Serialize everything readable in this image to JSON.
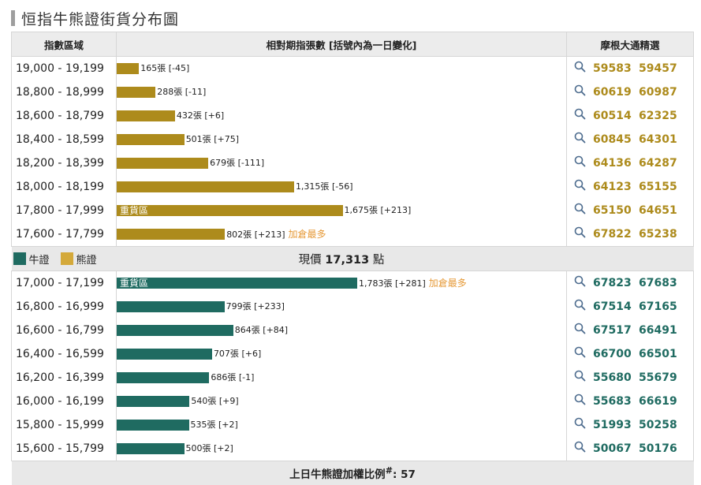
{
  "title": "恒指牛熊證街貨分布圖",
  "headers": {
    "range": "指數區域",
    "contracts": "相對期指張數 [括號內為一日變化]",
    "picks": "摩根大通精選"
  },
  "legend": {
    "bull": "牛證",
    "bear": "熊證"
  },
  "current_price": {
    "label": "現價",
    "value": "17,313",
    "unit": "點"
  },
  "footer": {
    "label": "上日牛熊證加權比例",
    "mark": "#",
    "sep": ":",
    "value": "57"
  },
  "heavy_label": "重貨區",
  "colors": {
    "bull": "#1f6b61",
    "bear": "#ad8b1c",
    "note": "#e69a38"
  },
  "icon": "search-icon",
  "chart_data": {
    "type": "bar",
    "orientation": "horizontal",
    "xmax": 1783,
    "bear_rows": [
      {
        "range": "19,000 - 19,199",
        "value": 165,
        "value_label": "165張",
        "change": "[-45]",
        "note": "",
        "heavy": false,
        "codes": [
          "59583",
          "59457"
        ]
      },
      {
        "range": "18,800 - 18,999",
        "value": 288,
        "value_label": "288張",
        "change": "[-11]",
        "note": "",
        "heavy": false,
        "codes": [
          "60619",
          "60987"
        ]
      },
      {
        "range": "18,600 - 18,799",
        "value": 432,
        "value_label": "432張",
        "change": "[+6]",
        "note": "",
        "heavy": false,
        "codes": [
          "60514",
          "62325"
        ]
      },
      {
        "range": "18,400 - 18,599",
        "value": 501,
        "value_label": "501張",
        "change": "[+75]",
        "note": "",
        "heavy": false,
        "codes": [
          "60845",
          "64301"
        ]
      },
      {
        "range": "18,200 - 18,399",
        "value": 679,
        "value_label": "679張",
        "change": "[-111]",
        "note": "",
        "heavy": false,
        "codes": [
          "64136",
          "64287"
        ]
      },
      {
        "range": "18,000 - 18,199",
        "value": 1315,
        "value_label": "1,315張",
        "change": "[-56]",
        "note": "",
        "heavy": false,
        "codes": [
          "64123",
          "65155"
        ]
      },
      {
        "range": "17,800 - 17,999",
        "value": 1675,
        "value_label": "1,675張",
        "change": "[+213]",
        "note": "",
        "heavy": true,
        "codes": [
          "65150",
          "64651"
        ]
      },
      {
        "range": "17,600 - 17,799",
        "value": 802,
        "value_label": "802張",
        "change": "[+213]",
        "note": "加倉最多",
        "heavy": false,
        "codes": [
          "67822",
          "65238"
        ]
      }
    ],
    "bull_rows": [
      {
        "range": "17,000 - 17,199",
        "value": 1783,
        "value_label": "1,783張",
        "change": "[+281]",
        "note": "加倉最多",
        "heavy": true,
        "codes": [
          "67823",
          "67683"
        ]
      },
      {
        "range": "16,800 - 16,999",
        "value": 799,
        "value_label": "799張",
        "change": "[+233]",
        "note": "",
        "heavy": false,
        "codes": [
          "67514",
          "67165"
        ]
      },
      {
        "range": "16,600 - 16,799",
        "value": 864,
        "value_label": "864張",
        "change": "[+84]",
        "note": "",
        "heavy": false,
        "codes": [
          "67517",
          "66491"
        ]
      },
      {
        "range": "16,400 - 16,599",
        "value": 707,
        "value_label": "707張",
        "change": "[+6]",
        "note": "",
        "heavy": false,
        "codes": [
          "66700",
          "66501"
        ]
      },
      {
        "range": "16,200 - 16,399",
        "value": 686,
        "value_label": "686張",
        "change": "[-1]",
        "note": "",
        "heavy": false,
        "codes": [
          "55680",
          "55679"
        ]
      },
      {
        "range": "16,000 - 16,199",
        "value": 540,
        "value_label": "540張",
        "change": "[+9]",
        "note": "",
        "heavy": false,
        "codes": [
          "55683",
          "66619"
        ]
      },
      {
        "range": "15,800 - 15,999",
        "value": 535,
        "value_label": "535張",
        "change": "[+2]",
        "note": "",
        "heavy": false,
        "codes": [
          "51993",
          "50258"
        ]
      },
      {
        "range": "15,600 - 15,799",
        "value": 500,
        "value_label": "500張",
        "change": "[+2]",
        "note": "",
        "heavy": false,
        "codes": [
          "50067",
          "50176"
        ]
      }
    ]
  }
}
